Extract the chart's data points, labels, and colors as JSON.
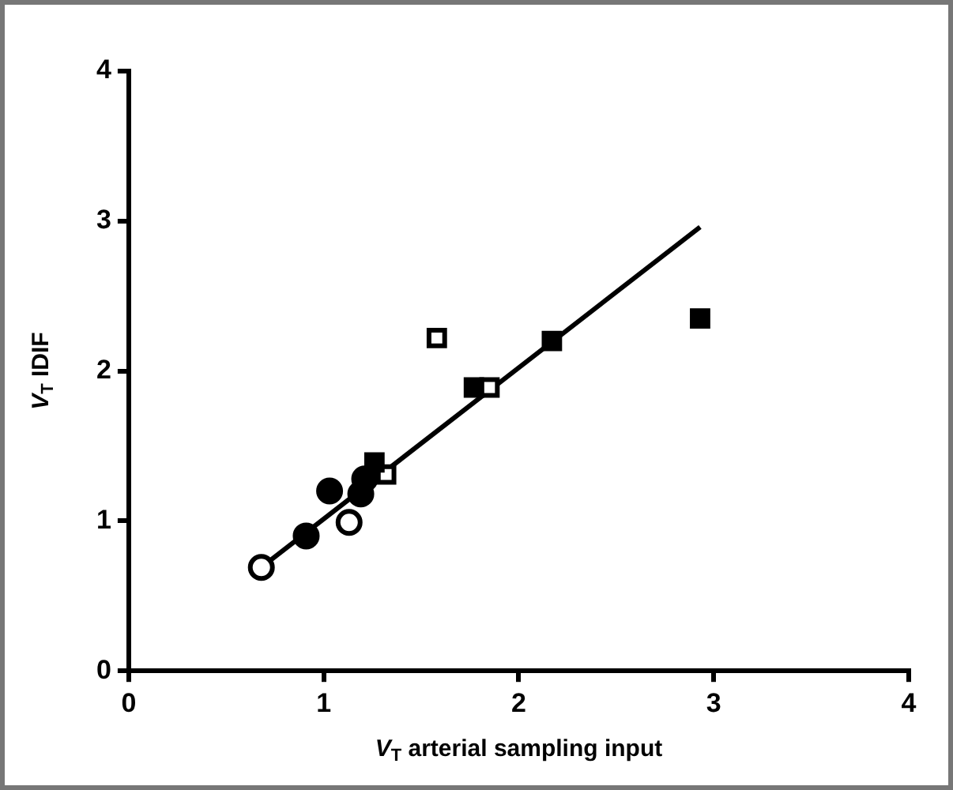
{
  "chart_data": {
    "type": "scatter",
    "xlabel": "V$_{T}$ arterial sampling input",
    "ylabel": "V$_{T}$ IDIF",
    "xlim": [
      0,
      4
    ],
    "ylim": [
      0,
      4
    ],
    "xticks": [
      0,
      1,
      2,
      3,
      4
    ],
    "yticks": [
      0,
      1,
      2,
      3,
      4
    ],
    "grid": false,
    "legend": false,
    "series": [
      {
        "color": "#000000",
        "marker": "circle",
        "x": [
          0.91,
          1.03,
          1.19,
          1.21
        ],
        "values": [
          0.9,
          1.2,
          1.18,
          1.28
        ]
      },
      {
        "color": "#ffffff",
        "marker": "circle",
        "x": [
          0.68,
          1.13
        ],
        "values": [
          0.69,
          0.99
        ]
      },
      {
        "color": "#000000",
        "marker": "square",
        "x": [
          1.26,
          1.77,
          2.17,
          2.93
        ],
        "values": [
          1.39,
          1.89,
          2.2,
          2.35
        ]
      },
      {
        "color": "#ffffff",
        "marker": "square",
        "x": [
          1.32,
          1.58,
          1.85
        ],
        "values": [
          1.31,
          2.22,
          1.89
        ]
      },
      {
        "type": "line",
        "color": "#000000",
        "marker": "none",
        "x": [
          0.68,
          2.93
        ],
        "values": [
          0.69,
          2.96
        ]
      }
    ]
  }
}
